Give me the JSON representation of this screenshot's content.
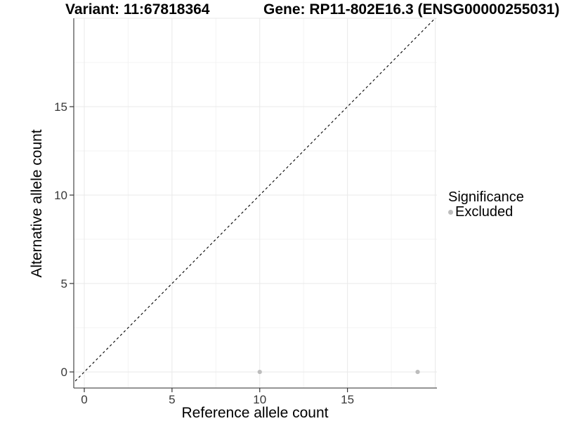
{
  "header": {
    "variant_title": "Variant: 11:67818364",
    "gene_title": "Gene: RP11-802E16.3 (ENSG00000255031)"
  },
  "chart_data": {
    "type": "scatter",
    "title_left": "Variant: 11:67818364",
    "title_right": "Gene: RP11-802E16.3 (ENSG00000255031)",
    "xlabel": "Reference allele count",
    "ylabel": "Alternative allele count",
    "xlim": [
      -0.6,
      20.1
    ],
    "ylim": [
      -0.91,
      20.0
    ],
    "x_ticks": [
      {
        "value": 0,
        "label": "0"
      },
      {
        "value": 5,
        "label": "5"
      },
      {
        "value": 10,
        "label": "10"
      },
      {
        "value": 15,
        "label": "15"
      }
    ],
    "y_ticks": [
      {
        "value": 0,
        "label": "0"
      },
      {
        "value": 5,
        "label": "5"
      },
      {
        "value": 10,
        "label": "10"
      },
      {
        "value": 15,
        "label": "15"
      }
    ],
    "x_major_gridlines": [
      0,
      5,
      10,
      15,
      20
    ],
    "y_major_gridlines": [
      0,
      5,
      10,
      15,
      20
    ],
    "x_minor_gridlines": [
      2.5,
      7.5,
      12.5,
      17.5
    ],
    "y_minor_gridlines": [
      2.5,
      7.5,
      12.5,
      17.5
    ],
    "grid": true,
    "identity_line": {
      "equation": "y = x",
      "style": "dashed",
      "color": "#000000"
    },
    "series": [
      {
        "name": "Excluded",
        "color": "#BDBDBD",
        "points": [
          {
            "x": 10,
            "y": 0
          },
          {
            "x": 19,
            "y": 0
          }
        ]
      }
    ],
    "legend": {
      "position": "right",
      "title": "Significance",
      "entries": [
        {
          "label": "Excluded",
          "color": "#BDBDBD",
          "marker": "dot"
        }
      ]
    },
    "colors": {
      "background": "#FFFFFF",
      "point": "#BDBDBD",
      "grid_major": "#E9E9E9",
      "grid_minor": "#F3F3F3",
      "axis_line": "#555555",
      "tick_mark": "#333333",
      "tick_label": "#383838",
      "identity_line": "#000000"
    }
  }
}
